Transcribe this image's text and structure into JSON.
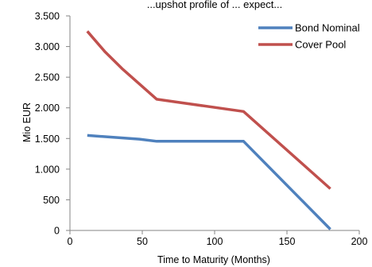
{
  "chart_data": {
    "type": "line",
    "title": "...upshot profile of ... expect...",
    "xlabel": "Time to Maturity (Months)",
    "ylabel": "Mio EUR",
    "xlim": [
      0,
      200
    ],
    "ylim": [
      0,
      3500
    ],
    "x_ticks": [
      0,
      50,
      100,
      150,
      200
    ],
    "y_ticks": [
      0,
      500,
      1000,
      1500,
      2000,
      2500,
      3000,
      3500
    ],
    "x_tick_labels": [
      "0",
      "50",
      "100",
      "150",
      "200"
    ],
    "y_tick_labels": [
      "0",
      "500",
      "1.000",
      "1.500",
      "2.000",
      "2.500",
      "3.000",
      "3.500"
    ],
    "grid": false,
    "legend_position": "top-right",
    "series": [
      {
        "name": "Bond Nominal",
        "color": "#4F81BD",
        "points": [
          [
            12,
            1550
          ],
          [
            48,
            1490
          ],
          [
            60,
            1455
          ],
          [
            120,
            1455
          ],
          [
            180,
            20
          ]
        ]
      },
      {
        "name": "Cover Pool",
        "color": "#C0504D",
        "points": [
          [
            12,
            3250
          ],
          [
            24,
            2920
          ],
          [
            36,
            2640
          ],
          [
            60,
            2140
          ],
          [
            120,
            1940
          ],
          [
            180,
            680
          ]
        ]
      }
    ]
  }
}
